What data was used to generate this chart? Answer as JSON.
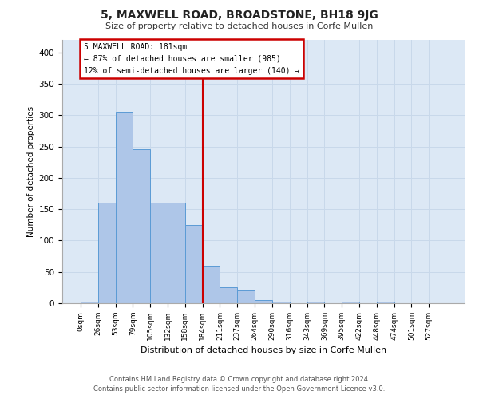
{
  "title": "5, MAXWELL ROAD, BROADSTONE, BH18 9JG",
  "subtitle": "Size of property relative to detached houses in Corfe Mullen",
  "xlabel": "Distribution of detached houses by size in Corfe Mullen",
  "ylabel": "Number of detached properties",
  "footer_line1": "Contains HM Land Registry data © Crown copyright and database right 2024.",
  "footer_line2": "Contains public sector information licensed under the Open Government Licence v3.0.",
  "bin_labels": [
    "0sqm",
    "26sqm",
    "53sqm",
    "79sqm",
    "105sqm",
    "132sqm",
    "158sqm",
    "184sqm",
    "211sqm",
    "237sqm",
    "264sqm",
    "290sqm",
    "316sqm",
    "343sqm",
    "369sqm",
    "395sqm",
    "422sqm",
    "448sqm",
    "474sqm",
    "501sqm",
    "527sqm"
  ],
  "bar_values": [
    2,
    160,
    305,
    245,
    160,
    160,
    125,
    60,
    25,
    20,
    5,
    2,
    0,
    2,
    0,
    2,
    0,
    2,
    0,
    0,
    0
  ],
  "bar_color": "#aec6e8",
  "bar_edge_color": "#5b9bd5",
  "grid_color": "#c8d8ea",
  "background_color": "#dce8f5",
  "vline_x": 7.0,
  "vline_color": "#cc0000",
  "annotation_text": "5 MAXWELL ROAD: 181sqm\n← 87% of detached houses are smaller (985)\n12% of semi-detached houses are larger (140) →",
  "annotation_box_color": "#ffffff",
  "annotation_box_edge": "#cc0000",
  "ylim": [
    0,
    420
  ],
  "yticks": [
    0,
    50,
    100,
    150,
    200,
    250,
    300,
    350,
    400
  ]
}
